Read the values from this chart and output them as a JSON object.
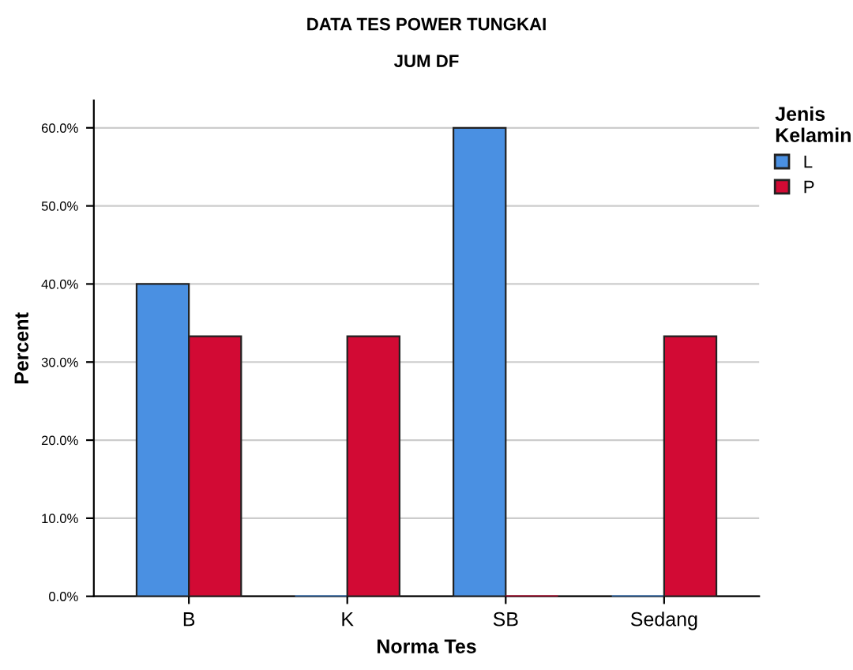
{
  "chart_data": {
    "type": "bar",
    "title": "DATA TES POWER TUNGKAI",
    "subtitle": "JUM DF",
    "xlabel": "Norma Tes",
    "ylabel": "Percent",
    "legend_title": "Jenis\nKelamin",
    "categories": [
      "B",
      "K",
      "SB",
      "Sedang"
    ],
    "series": [
      {
        "name": "L",
        "color": "#4a90e2",
        "values": [
          40,
          0,
          60,
          0
        ]
      },
      {
        "name": "P",
        "color": "#d20a34",
        "values": [
          33.3,
          33.3,
          0,
          33.3
        ]
      }
    ],
    "ylim": [
      0,
      63.5
    ],
    "yticks": [
      {
        "value": 0,
        "label": "0.0%"
      },
      {
        "value": 10,
        "label": "10.0%"
      },
      {
        "value": 20,
        "label": "20.0%"
      },
      {
        "value": 30,
        "label": "30.0%"
      },
      {
        "value": 40,
        "label": "40.0%"
      },
      {
        "value": 50,
        "label": "50.0%"
      },
      {
        "value": 60,
        "label": "60.0%"
      }
    ],
    "grid": "y",
    "legend": "top right"
  }
}
